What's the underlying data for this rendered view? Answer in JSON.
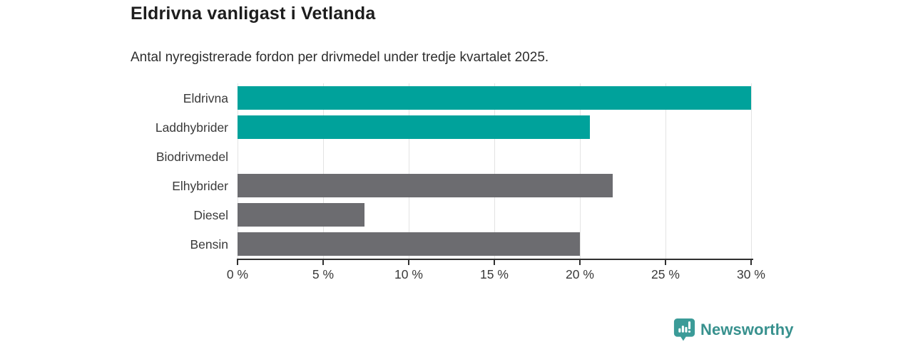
{
  "header": {
    "title": "Eldrivna vanligast i Vetlanda",
    "subtitle": "Antal nyregistrerade fordon per drivmedel under tredje kvartalet 2025."
  },
  "chart_data": {
    "type": "bar",
    "orientation": "horizontal",
    "title": "Eldrivna vanligast i Vetlanda",
    "subtitle": "Antal nyregistrerade fordon per drivmedel under tredje kvartalet 2025.",
    "categories": [
      "Eldrivna",
      "Laddhybrider",
      "Biodrivmedel",
      "Elhybrider",
      "Diesel",
      "Bensin"
    ],
    "values": [
      30.0,
      20.6,
      0,
      21.9,
      7.4,
      20.0
    ],
    "unit": "%",
    "bar_colors": [
      "#00a29b",
      "#00a29b",
      "#6c6c70",
      "#6c6c70",
      "#6c6c70",
      "#6c6c70"
    ],
    "xlabel": "",
    "ylabel": "",
    "xlim": [
      0,
      30
    ],
    "x_ticks": [
      0,
      5,
      10,
      15,
      20,
      25,
      30
    ],
    "x_tick_labels": [
      "0 %",
      "5 %",
      "10 %",
      "15 %",
      "20 %",
      "25 %",
      "30 %"
    ],
    "grid": "vertical",
    "legend": "none"
  },
  "colors": {
    "accent_teal": "#00a29b",
    "bar_gray": "#6c6c70",
    "title_text": "#1d1d1d",
    "body_text": "#3a3a3a",
    "grid_line": "#e3e3e3",
    "axis_line": "#303030",
    "logo_teal": "#3b9b98",
    "logo_text_teal": "#38918e"
  },
  "footer": {
    "brand": "Newsworthy"
  }
}
